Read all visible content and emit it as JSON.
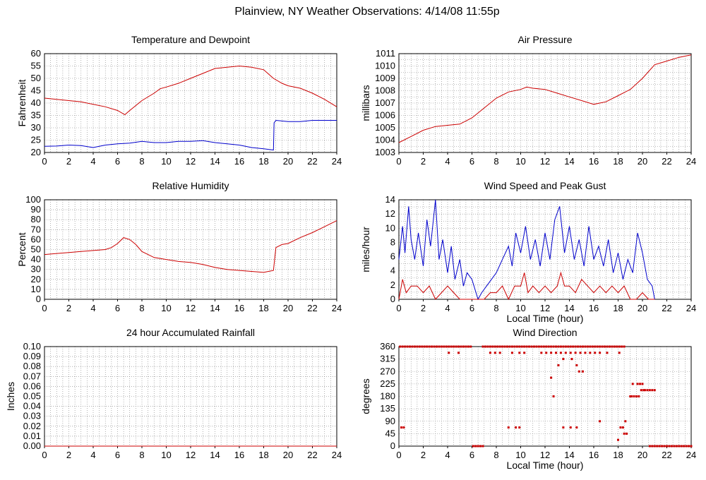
{
  "page": {
    "title": "Plainview, NY Weather Observations: 4/14/08 11:55p"
  },
  "colors": {
    "red": "#cc0000",
    "blue": "#0000cc",
    "grid": "#7f7f7f",
    "frame": "#000000"
  },
  "chart_data": [
    {
      "id": "temp",
      "type": "line",
      "title": "Temperature and Dewpoint",
      "ylabel": "Fahrenheit",
      "xlabel": "",
      "xlim": [
        0,
        24
      ],
      "ylim": [
        20,
        60
      ],
      "grid": true,
      "x_ticks": [
        "0",
        "2",
        "4",
        "6",
        "8",
        "10",
        "12",
        "14",
        "16",
        "18",
        "20",
        "22",
        "24"
      ],
      "y_ticks": [
        "20",
        "25",
        "30",
        "35",
        "40",
        "45",
        "50",
        "55",
        "60"
      ],
      "series": [
        {
          "color": "red",
          "x": [
            0,
            1,
            2,
            3,
            4,
            5,
            6,
            6.6,
            7,
            8,
            9,
            9.5,
            10,
            11,
            12,
            13,
            14,
            15,
            16,
            17,
            18,
            18.8,
            19.5,
            20,
            21,
            22,
            23,
            24
          ],
          "y": [
            42,
            41.5,
            41,
            40.5,
            39.5,
            38.5,
            37,
            35.3,
            37,
            41,
            44,
            45.8,
            46.5,
            48,
            50,
            52,
            54,
            54.5,
            55,
            54.5,
            53.5,
            50,
            48,
            47,
            46,
            44,
            41.5,
            38.5
          ]
        },
        {
          "color": "blue",
          "x": [
            0,
            1,
            2,
            3,
            4,
            5,
            6,
            7,
            8,
            9,
            10,
            11,
            12,
            13,
            14,
            15,
            16,
            17,
            18,
            18.8,
            18.85,
            19,
            20,
            21,
            22,
            23,
            24
          ],
          "y": [
            22.5,
            22.6,
            23,
            22.8,
            22,
            23,
            23.5,
            23.8,
            24.5,
            24,
            24,
            24.5,
            24.5,
            24.8,
            24,
            23.5,
            23,
            22,
            21.5,
            21,
            32,
            33,
            32.5,
            32.5,
            33,
            33,
            33
          ]
        }
      ]
    },
    {
      "id": "pressure",
      "type": "line",
      "title": "Air Pressure",
      "ylabel": "millibars",
      "xlabel": "",
      "xlim": [
        0,
        24
      ],
      "ylim": [
        1003,
        1011
      ],
      "grid": true,
      "x_ticks": [
        "0",
        "2",
        "4",
        "6",
        "8",
        "10",
        "12",
        "14",
        "16",
        "18",
        "20",
        "22",
        "24"
      ],
      "y_ticks": [
        "1003",
        "1004",
        "1005",
        "1006",
        "1007",
        "1008",
        "1009",
        "1010",
        "1011"
      ],
      "series": [
        {
          "color": "red",
          "x": [
            0,
            1,
            2,
            3,
            4,
            5,
            6,
            7,
            8,
            9,
            10,
            10.5,
            11,
            12,
            13,
            14,
            15,
            16,
            17,
            18,
            19,
            20,
            21,
            22,
            23,
            24
          ],
          "y": [
            1003.8,
            1004.3,
            1004.8,
            1005.1,
            1005.2,
            1005.3,
            1005.8,
            1006.6,
            1007.4,
            1007.9,
            1008.1,
            1008.3,
            1008.2,
            1008.1,
            1007.8,
            1007.5,
            1007.2,
            1006.9,
            1007.1,
            1007.6,
            1008.1,
            1009.0,
            1010.1,
            1010.4,
            1010.7,
            1010.9
          ]
        }
      ]
    },
    {
      "id": "humidity",
      "type": "line",
      "title": "Relative Humidity",
      "ylabel": "Percent",
      "xlabel": "",
      "xlim": [
        0,
        24
      ],
      "ylim": [
        0,
        100
      ],
      "grid": true,
      "x_ticks": [
        "0",
        "2",
        "4",
        "6",
        "8",
        "10",
        "12",
        "14",
        "16",
        "18",
        "20",
        "22",
        "24"
      ],
      "y_ticks": [
        "0",
        "10",
        "20",
        "30",
        "40",
        "50",
        "60",
        "70",
        "80",
        "90",
        "100"
      ],
      "series": [
        {
          "color": "red",
          "x": [
            0,
            1,
            2,
            3,
            4,
            5,
            5.5,
            6,
            6.5,
            7,
            7.5,
            8,
            9,
            10,
            11,
            12,
            13,
            14,
            15,
            16,
            17,
            18,
            18.8,
            19,
            19.5,
            20,
            21,
            22,
            23,
            24
          ],
          "y": [
            45,
            46,
            47,
            48,
            49,
            50,
            52,
            56,
            62,
            60,
            55,
            48,
            42,
            40,
            38,
            37,
            35,
            32,
            30,
            29,
            28,
            27,
            29,
            52,
            55,
            56,
            62,
            67,
            73,
            79
          ]
        }
      ]
    },
    {
      "id": "wind",
      "type": "line",
      "title": "Wind Speed and Peak Gust",
      "ylabel": "miles/hour",
      "xlabel": "Local Time (hour)",
      "xlim": [
        0,
        24
      ],
      "ylim": [
        0,
        15
      ],
      "grid": true,
      "x_ticks": [
        "0",
        "2",
        "4",
        "6",
        "8",
        "10",
        "12",
        "14",
        "16",
        "18",
        "20",
        "22",
        "24"
      ],
      "y_ticks": [
        "0",
        "2",
        "4",
        "6",
        "8",
        "10",
        "12",
        "14"
      ],
      "series": [
        {
          "color": "blue",
          "x": [
            0,
            0.3,
            0.5,
            0.8,
            1,
            1.3,
            1.6,
            2,
            2.3,
            2.6,
            3,
            3.3,
            3.6,
            4,
            4.3,
            4.6,
            5,
            5.3,
            5.6,
            6,
            6.5,
            6.8,
            7.2,
            7.6,
            8,
            8.5,
            9,
            9.3,
            9.6,
            10,
            10.4,
            10.8,
            11.2,
            11.6,
            12,
            12.4,
            12.8,
            13.2,
            13.6,
            14,
            14.4,
            14.8,
            15.2,
            15.6,
            16,
            16.4,
            16.8,
            17.2,
            17.6,
            18,
            18.4,
            18.8,
            19.2,
            19.6,
            20,
            20.4,
            20.8,
            21
          ],
          "y": [
            6,
            11,
            7,
            14,
            9,
            6,
            10,
            5,
            12,
            8,
            15,
            6,
            9,
            4,
            8,
            3,
            6,
            2,
            4,
            3,
            0,
            1,
            2,
            3,
            4,
            6,
            8,
            5,
            10,
            7,
            11,
            6,
            9,
            5,
            10,
            6,
            12,
            14,
            7,
            11,
            6,
            9,
            5,
            11,
            6,
            8,
            5,
            9,
            4,
            7,
            3,
            6,
            4,
            10,
            7,
            3,
            2,
            0
          ]
        },
        {
          "color": "red",
          "x": [
            0,
            0.3,
            0.6,
            1,
            1.5,
            2,
            2.5,
            3,
            3.5,
            4,
            4.5,
            5,
            5.5,
            6,
            6.5,
            7,
            7.5,
            8,
            8.5,
            9,
            9.5,
            10,
            10.3,
            10.6,
            11,
            11.5,
            12,
            12.5,
            13,
            13.3,
            13.6,
            14,
            14.5,
            15,
            15.5,
            16,
            16.5,
            17,
            17.5,
            18,
            18.5,
            19,
            19.5,
            20,
            20.5,
            21
          ],
          "y": [
            0,
            3,
            1,
            2,
            2,
            1,
            2,
            0,
            1,
            2,
            1,
            0,
            0,
            0,
            0,
            0,
            1,
            1,
            2,
            0,
            2,
            2,
            4,
            1,
            2,
            1,
            2,
            1,
            2,
            4,
            2,
            2,
            1,
            3,
            2,
            1,
            2,
            1,
            2,
            1,
            2,
            0,
            0,
            1,
            0,
            0
          ]
        }
      ]
    },
    {
      "id": "rain",
      "type": "line",
      "title": "24 hour Accumulated Rainfall",
      "ylabel": "Inches",
      "xlabel": "",
      "xlim": [
        0,
        24
      ],
      "ylim": [
        0,
        0.1
      ],
      "grid": true,
      "x_ticks": [
        "0",
        "2",
        "4",
        "6",
        "8",
        "10",
        "12",
        "14",
        "16",
        "18",
        "20",
        "22",
        "24"
      ],
      "y_ticks": [
        "0.00",
        "0.01",
        "0.02",
        "0.03",
        "0.04",
        "0.05",
        "0.06",
        "0.07",
        "0.08",
        "0.09",
        "0.10"
      ],
      "series": [
        {
          "color": "red",
          "x": [
            0,
            24
          ],
          "y": [
            0,
            0
          ]
        }
      ]
    },
    {
      "id": "direction",
      "type": "scatter",
      "title": "Wind Direction",
      "ylabel": "degrees",
      "xlabel": "Local Time (hour)",
      "xlim": [
        0,
        24
      ],
      "ylim": [
        0,
        360
      ],
      "grid": true,
      "x_ticks": [
        "0",
        "2",
        "4",
        "6",
        "8",
        "10",
        "12",
        "14",
        "16",
        "18",
        "20",
        "22",
        "24"
      ],
      "y_ticks": [
        "0",
        "45",
        "90",
        "135",
        "180",
        "225",
        "270",
        "315",
        "360"
      ],
      "series": [
        {
          "color": "red",
          "x": [
            0.1,
            0.3,
            0.5,
            0.7,
            0.9,
            1.1,
            1.3,
            1.5,
            1.7,
            1.9,
            2.1,
            2.3,
            2.5,
            2.7,
            2.9,
            3.1,
            3.3,
            3.5,
            3.7,
            3.9,
            4.1,
            4.3,
            4.5,
            4.7,
            4.9,
            5.1,
            5.3,
            5.5,
            5.7,
            5.9,
            0.2,
            0.4,
            4.1,
            4.9,
            6.1,
            6.3,
            6.5,
            6.7,
            6.9,
            6.9,
            7.1,
            7.3,
            7.5,
            7.7,
            7.9,
            8.1,
            8.3,
            8.5,
            8.7,
            8.9,
            9.1,
            9.3,
            9.5,
            9.7,
            9.9,
            10.1,
            10.3,
            10.5,
            10.7,
            10.9,
            11.1,
            11.3,
            11.5,
            11.7,
            11.9,
            12.1,
            12.3,
            12.5,
            12.7,
            12.9,
            13.1,
            13.3,
            13.5,
            13.7,
            13.9,
            14.1,
            14.3,
            14.5,
            14.7,
            14.9,
            15.1,
            15.3,
            15.5,
            15.7,
            15.9,
            16.1,
            16.3,
            16.5,
            16.7,
            16.9,
            17.1,
            17.3,
            17.5,
            17.7,
            17.9,
            18.1,
            18.3,
            18.5,
            7.5,
            7.9,
            8.3,
            9.3,
            9.9,
            10.3,
            11.7,
            12.1,
            12.5,
            12.9,
            13.3,
            13.7,
            14.1,
            14.5,
            14.9,
            15.3,
            15.7,
            16.1,
            16.5,
            17.1,
            18.1,
            9.0,
            9.6,
            9.9,
            12.7,
            12.5,
            13.1,
            13.5,
            14.2,
            14.6,
            14.8,
            15.1,
            13.5,
            14.1,
            14.6,
            16.5,
            18.0,
            18.4,
            18.6,
            18.5,
            18.7,
            18.2,
            19.0,
            19.1,
            19.3,
            19.5,
            19.7,
            19.9,
            19.2,
            19.6,
            19.8,
            20.0,
            20.1,
            20.2,
            20.4,
            20.6,
            20.8,
            21.0,
            20.6,
            20.8,
            21.0,
            21.2,
            21.4,
            21.6,
            21.8,
            22.0,
            22.2,
            22.4,
            22.6,
            22.8,
            23.0,
            23.2,
            23.4,
            23.6,
            23.8,
            24.0
          ],
          "y": [
            360,
            360,
            360,
            360,
            360,
            360,
            360,
            360,
            360,
            360,
            360,
            360,
            360,
            360,
            360,
            360,
            360,
            360,
            360,
            360,
            360,
            360,
            360,
            360,
            360,
            360,
            360,
            360,
            360,
            360,
            67.5,
            67.5,
            337.5,
            337.5,
            0,
            0,
            0,
            0,
            0,
            360,
            360,
            360,
            360,
            360,
            360,
            360,
            360,
            360,
            360,
            360,
            360,
            360,
            360,
            360,
            360,
            360,
            360,
            360,
            360,
            360,
            360,
            360,
            360,
            360,
            360,
            360,
            360,
            360,
            360,
            360,
            360,
            360,
            360,
            360,
            360,
            360,
            360,
            360,
            360,
            360,
            360,
            360,
            360,
            360,
            360,
            360,
            360,
            360,
            360,
            360,
            360,
            360,
            360,
            360,
            360,
            360,
            360,
            360,
            337.5,
            337.5,
            337.5,
            337.5,
            337.5,
            337.5,
            337.5,
            337.5,
            337.5,
            337.5,
            337.5,
            337.5,
            337.5,
            337.5,
            337.5,
            337.5,
            337.5,
            337.5,
            337.5,
            337.5,
            337.5,
            67.5,
            67.5,
            67.5,
            180,
            247.5,
            292.5,
            315,
            315,
            292.5,
            270,
            270,
            67.5,
            67.5,
            67.5,
            90,
            22.5,
            67.5,
            90,
            45,
            45,
            67.5,
            180,
            180,
            180,
            180,
            180,
            202.5,
            225,
            225,
            225,
            225,
            202.5,
            202.5,
            202.5,
            202.5,
            202.5,
            202.5,
            0,
            0,
            0,
            0,
            0,
            0,
            0,
            0,
            0,
            0,
            0,
            0,
            0,
            0,
            0,
            0,
            0,
            0
          ]
        }
      ]
    }
  ]
}
